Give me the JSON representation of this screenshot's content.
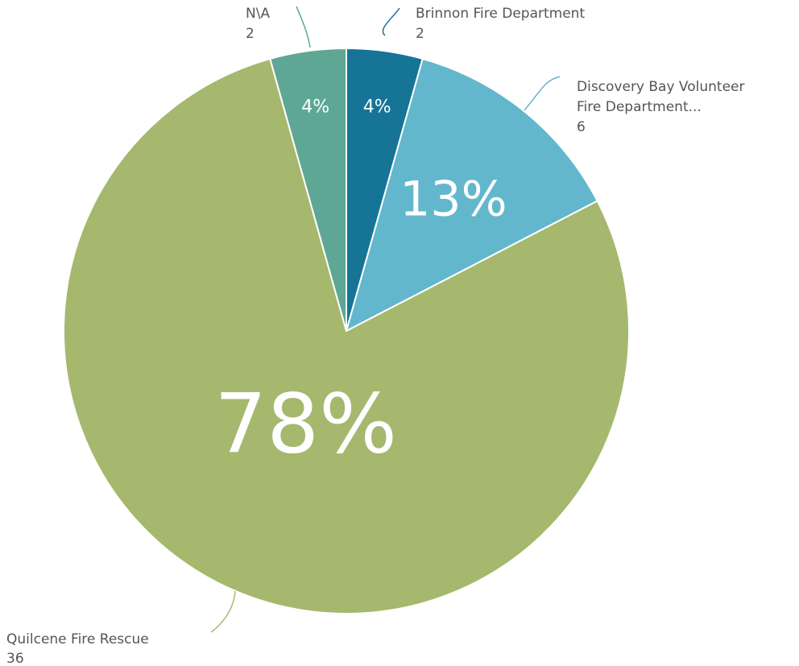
{
  "chart_data": {
    "type": "pie",
    "title": "",
    "start_angle_deg": 0,
    "direction": "clockwise",
    "slices": [
      {
        "name": "Brinnon Fire Department",
        "value": 2,
        "percent_label": "4%",
        "color": "#167497"
      },
      {
        "name": "Discovery Bay Volunteer Fire Department...",
        "name_lines": [
          "Discovery Bay Volunteer",
          "Fire Department..."
        ],
        "value": 6,
        "percent_label": "13%",
        "color": "#62b7cc"
      },
      {
        "name": "Quilcene Fire Rescue",
        "value": 36,
        "percent_label": "78%",
        "color": "#a5b86e"
      },
      {
        "name": "N\\A",
        "value": 2,
        "percent_label": "4%",
        "color": "#5ea794"
      }
    ]
  }
}
